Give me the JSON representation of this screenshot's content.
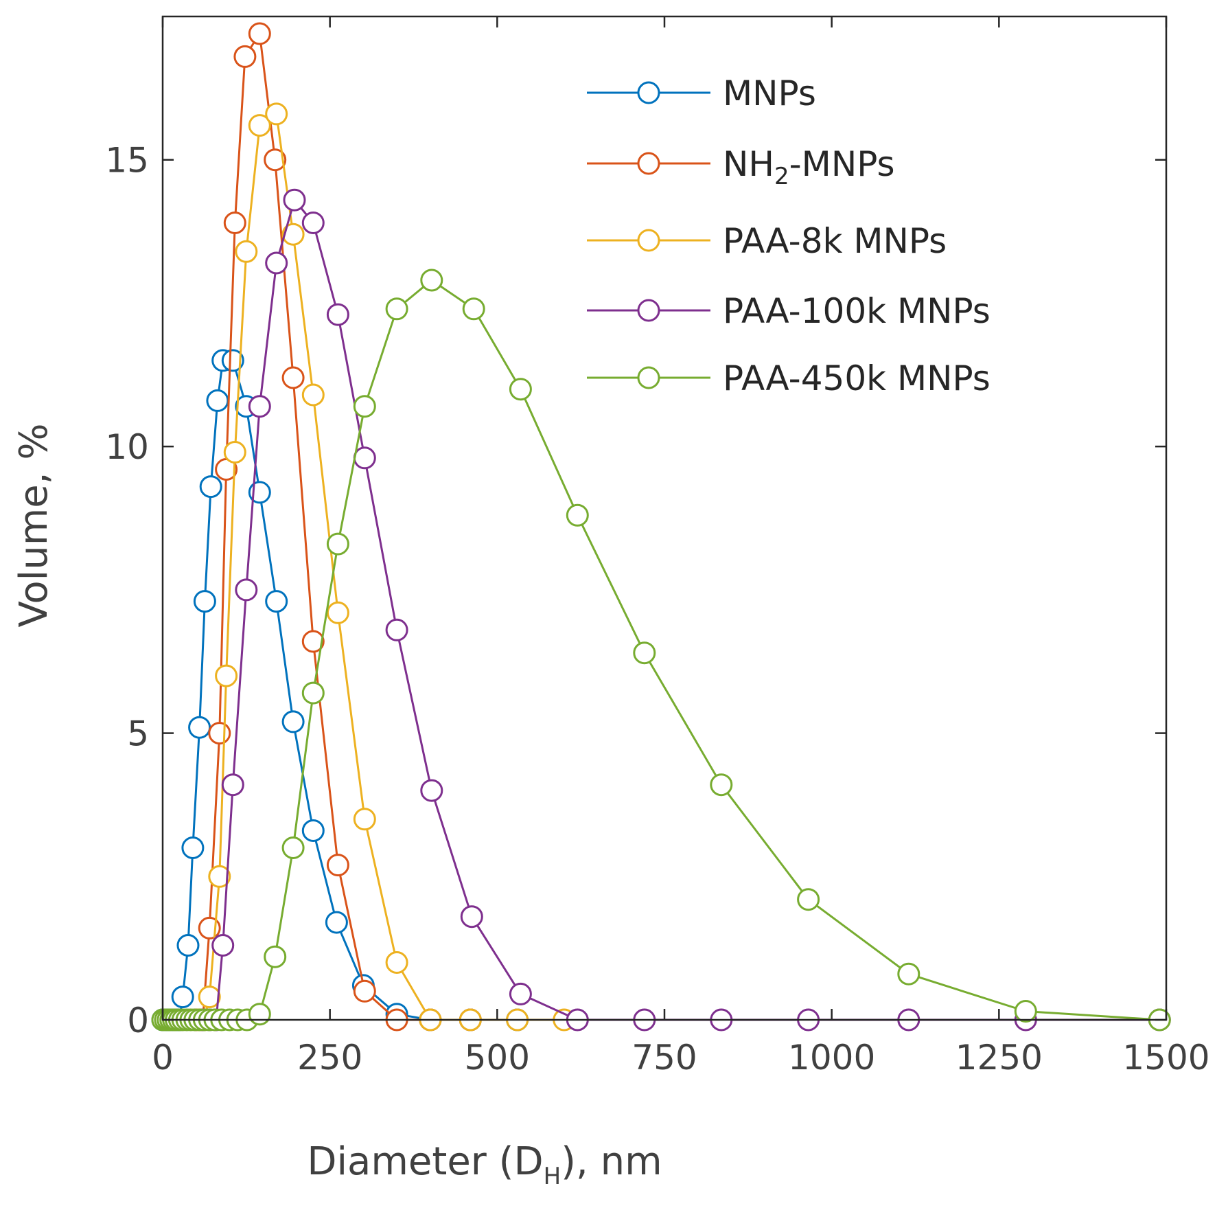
{
  "chart_data": {
    "type": "line",
    "title": "",
    "xlabel": "Diameter (D",
    "xlabel_sub": "H",
    "xlabel_tail": "), nm",
    "ylabel": "Volume, %",
    "xlim": [
      0,
      1500
    ],
    "ylim": [
      0,
      17.5
    ],
    "xticks": [
      0,
      250,
      500,
      750,
      1000,
      1250,
      1500
    ],
    "yticks": [
      0,
      5,
      10,
      15
    ],
    "grid": false,
    "legend_position": "top-right",
    "series": [
      {
        "name": "MNPs",
        "label_main": "MNPs",
        "color": "#0072BD",
        "points": [
          [
            0,
            0
          ],
          [
            6,
            0
          ],
          [
            10,
            0
          ],
          [
            15,
            0
          ],
          [
            20,
            0
          ],
          [
            25,
            0
          ],
          [
            30,
            0.4
          ],
          [
            38,
            1.3
          ],
          [
            45,
            3.0
          ],
          [
            55,
            5.1
          ],
          [
            63,
            7.3
          ],
          [
            72,
            9.3
          ],
          [
            82,
            10.8
          ],
          [
            90,
            11.5
          ],
          [
            105,
            11.5
          ],
          [
            125,
            10.7
          ],
          [
            145,
            9.2
          ],
          [
            170,
            7.3
          ],
          [
            195,
            5.2
          ],
          [
            225,
            3.3
          ],
          [
            260,
            1.7
          ],
          [
            300,
            0.6
          ],
          [
            350,
            0.1
          ],
          [
            400,
            0
          ],
          [
            460,
            0
          ],
          [
            530,
            0
          ]
        ]
      },
      {
        "name": "NH2-MNPs",
        "label_main": "NH",
        "label_sub": "2",
        "label_tail": "-MNPs",
        "color": "#D95319",
        "points": [
          [
            50,
            0
          ],
          [
            60,
            0
          ],
          [
            70,
            1.6
          ],
          [
            85,
            5.0
          ],
          [
            95,
            9.6
          ],
          [
            108,
            13.9
          ],
          [
            123,
            16.8
          ],
          [
            145,
            17.2
          ],
          [
            168,
            15.0
          ],
          [
            195,
            11.2
          ],
          [
            225,
            6.6
          ],
          [
            262,
            2.7
          ],
          [
            302,
            0.5
          ],
          [
            350,
            0
          ],
          [
            400,
            0
          ],
          [
            460,
            0
          ]
        ]
      },
      {
        "name": "PAA-8k MNPs",
        "label_main": "PAA-8k MNPs",
        "color": "#EDB120",
        "points": [
          [
            55,
            0
          ],
          [
            62,
            0
          ],
          [
            70,
            0.4
          ],
          [
            85,
            2.5
          ],
          [
            95,
            6.0
          ],
          [
            108,
            9.9
          ],
          [
            125,
            13.4
          ],
          [
            145,
            15.6
          ],
          [
            170,
            15.8
          ],
          [
            195,
            13.7
          ],
          [
            225,
            10.9
          ],
          [
            262,
            7.1
          ],
          [
            302,
            3.5
          ],
          [
            350,
            1.0
          ],
          [
            400,
            0
          ],
          [
            460,
            0
          ],
          [
            530,
            0
          ],
          [
            600,
            0
          ]
        ]
      },
      {
        "name": "PAA-100k MNPs",
        "label_main": "PAA-100k MNPs",
        "color": "#7E2F8E",
        "points": [
          [
            60,
            0
          ],
          [
            70,
            0
          ],
          [
            80,
            0
          ],
          [
            90,
            1.3
          ],
          [
            105,
            4.1
          ],
          [
            125,
            7.5
          ],
          [
            145,
            10.7
          ],
          [
            170,
            13.2
          ],
          [
            197,
            14.3
          ],
          [
            225,
            13.9
          ],
          [
            262,
            12.3
          ],
          [
            302,
            9.8
          ],
          [
            350,
            6.8
          ],
          [
            402,
            4.0
          ],
          [
            462,
            1.8
          ],
          [
            535,
            0.45
          ],
          [
            620,
            0
          ],
          [
            720,
            0
          ],
          [
            835,
            0
          ],
          [
            965,
            0
          ],
          [
            1115,
            0
          ],
          [
            1290,
            0
          ],
          [
            1490,
            0
          ]
        ]
      },
      {
        "name": "PAA-450k MNPs",
        "label_main": "PAA-450k MNPs",
        "color": "#77AC30",
        "points": [
          [
            0,
            0
          ],
          [
            4,
            0
          ],
          [
            8,
            0
          ],
          [
            12,
            0
          ],
          [
            16,
            0
          ],
          [
            20,
            0
          ],
          [
            25,
            0
          ],
          [
            30,
            0
          ],
          [
            36,
            0
          ],
          [
            42,
            0
          ],
          [
            48,
            0
          ],
          [
            55,
            0
          ],
          [
            62,
            0
          ],
          [
            70,
            0
          ],
          [
            78,
            0
          ],
          [
            88,
            0
          ],
          [
            100,
            0
          ],
          [
            112,
            0
          ],
          [
            126,
            0
          ],
          [
            145,
            0.1
          ],
          [
            168,
            1.1
          ],
          [
            195,
            3.0
          ],
          [
            225,
            5.7
          ],
          [
            262,
            8.3
          ],
          [
            302,
            10.7
          ],
          [
            350,
            12.4
          ],
          [
            402,
            12.9
          ],
          [
            465,
            12.4
          ],
          [
            535,
            11.0
          ],
          [
            620,
            8.8
          ],
          [
            720,
            6.4
          ],
          [
            835,
            4.1
          ],
          [
            965,
            2.1
          ],
          [
            1115,
            0.8
          ],
          [
            1290,
            0.15
          ],
          [
            1490,
            0
          ]
        ]
      }
    ]
  }
}
